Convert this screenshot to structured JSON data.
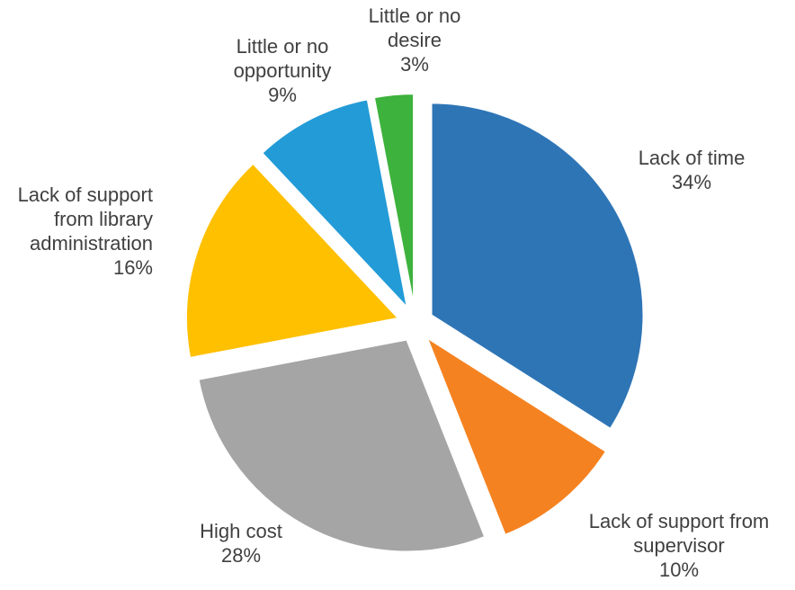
{
  "chart_data": {
    "type": "pie",
    "exploded": true,
    "start_angle_deg": 0,
    "direction": "clockwise",
    "slices": [
      {
        "label_lines": [
          "Lack of time"
        ],
        "value_label": "34%",
        "value": 34,
        "color": "#2E75B6"
      },
      {
        "label_lines": [
          "Lack of support from",
          "supervisor"
        ],
        "value_label": "10%",
        "value": 10,
        "color": "#F58220"
      },
      {
        "label_lines": [
          "High cost"
        ],
        "value_label": "28%",
        "value": 28,
        "color": "#A5A5A5"
      },
      {
        "label_lines": [
          "Lack of support",
          "from library",
          "administration"
        ],
        "value_label": "16%",
        "value": 16,
        "color": "#FFC000"
      },
      {
        "label_lines": [
          "Little or no",
          "opportunity"
        ],
        "value_label": "9%",
        "value": 9,
        "color": "#239BD7"
      },
      {
        "label_lines": [
          "Little or no",
          "desire"
        ],
        "value_label": "3%",
        "value": 3,
        "color": "#3DB23D"
      }
    ]
  }
}
